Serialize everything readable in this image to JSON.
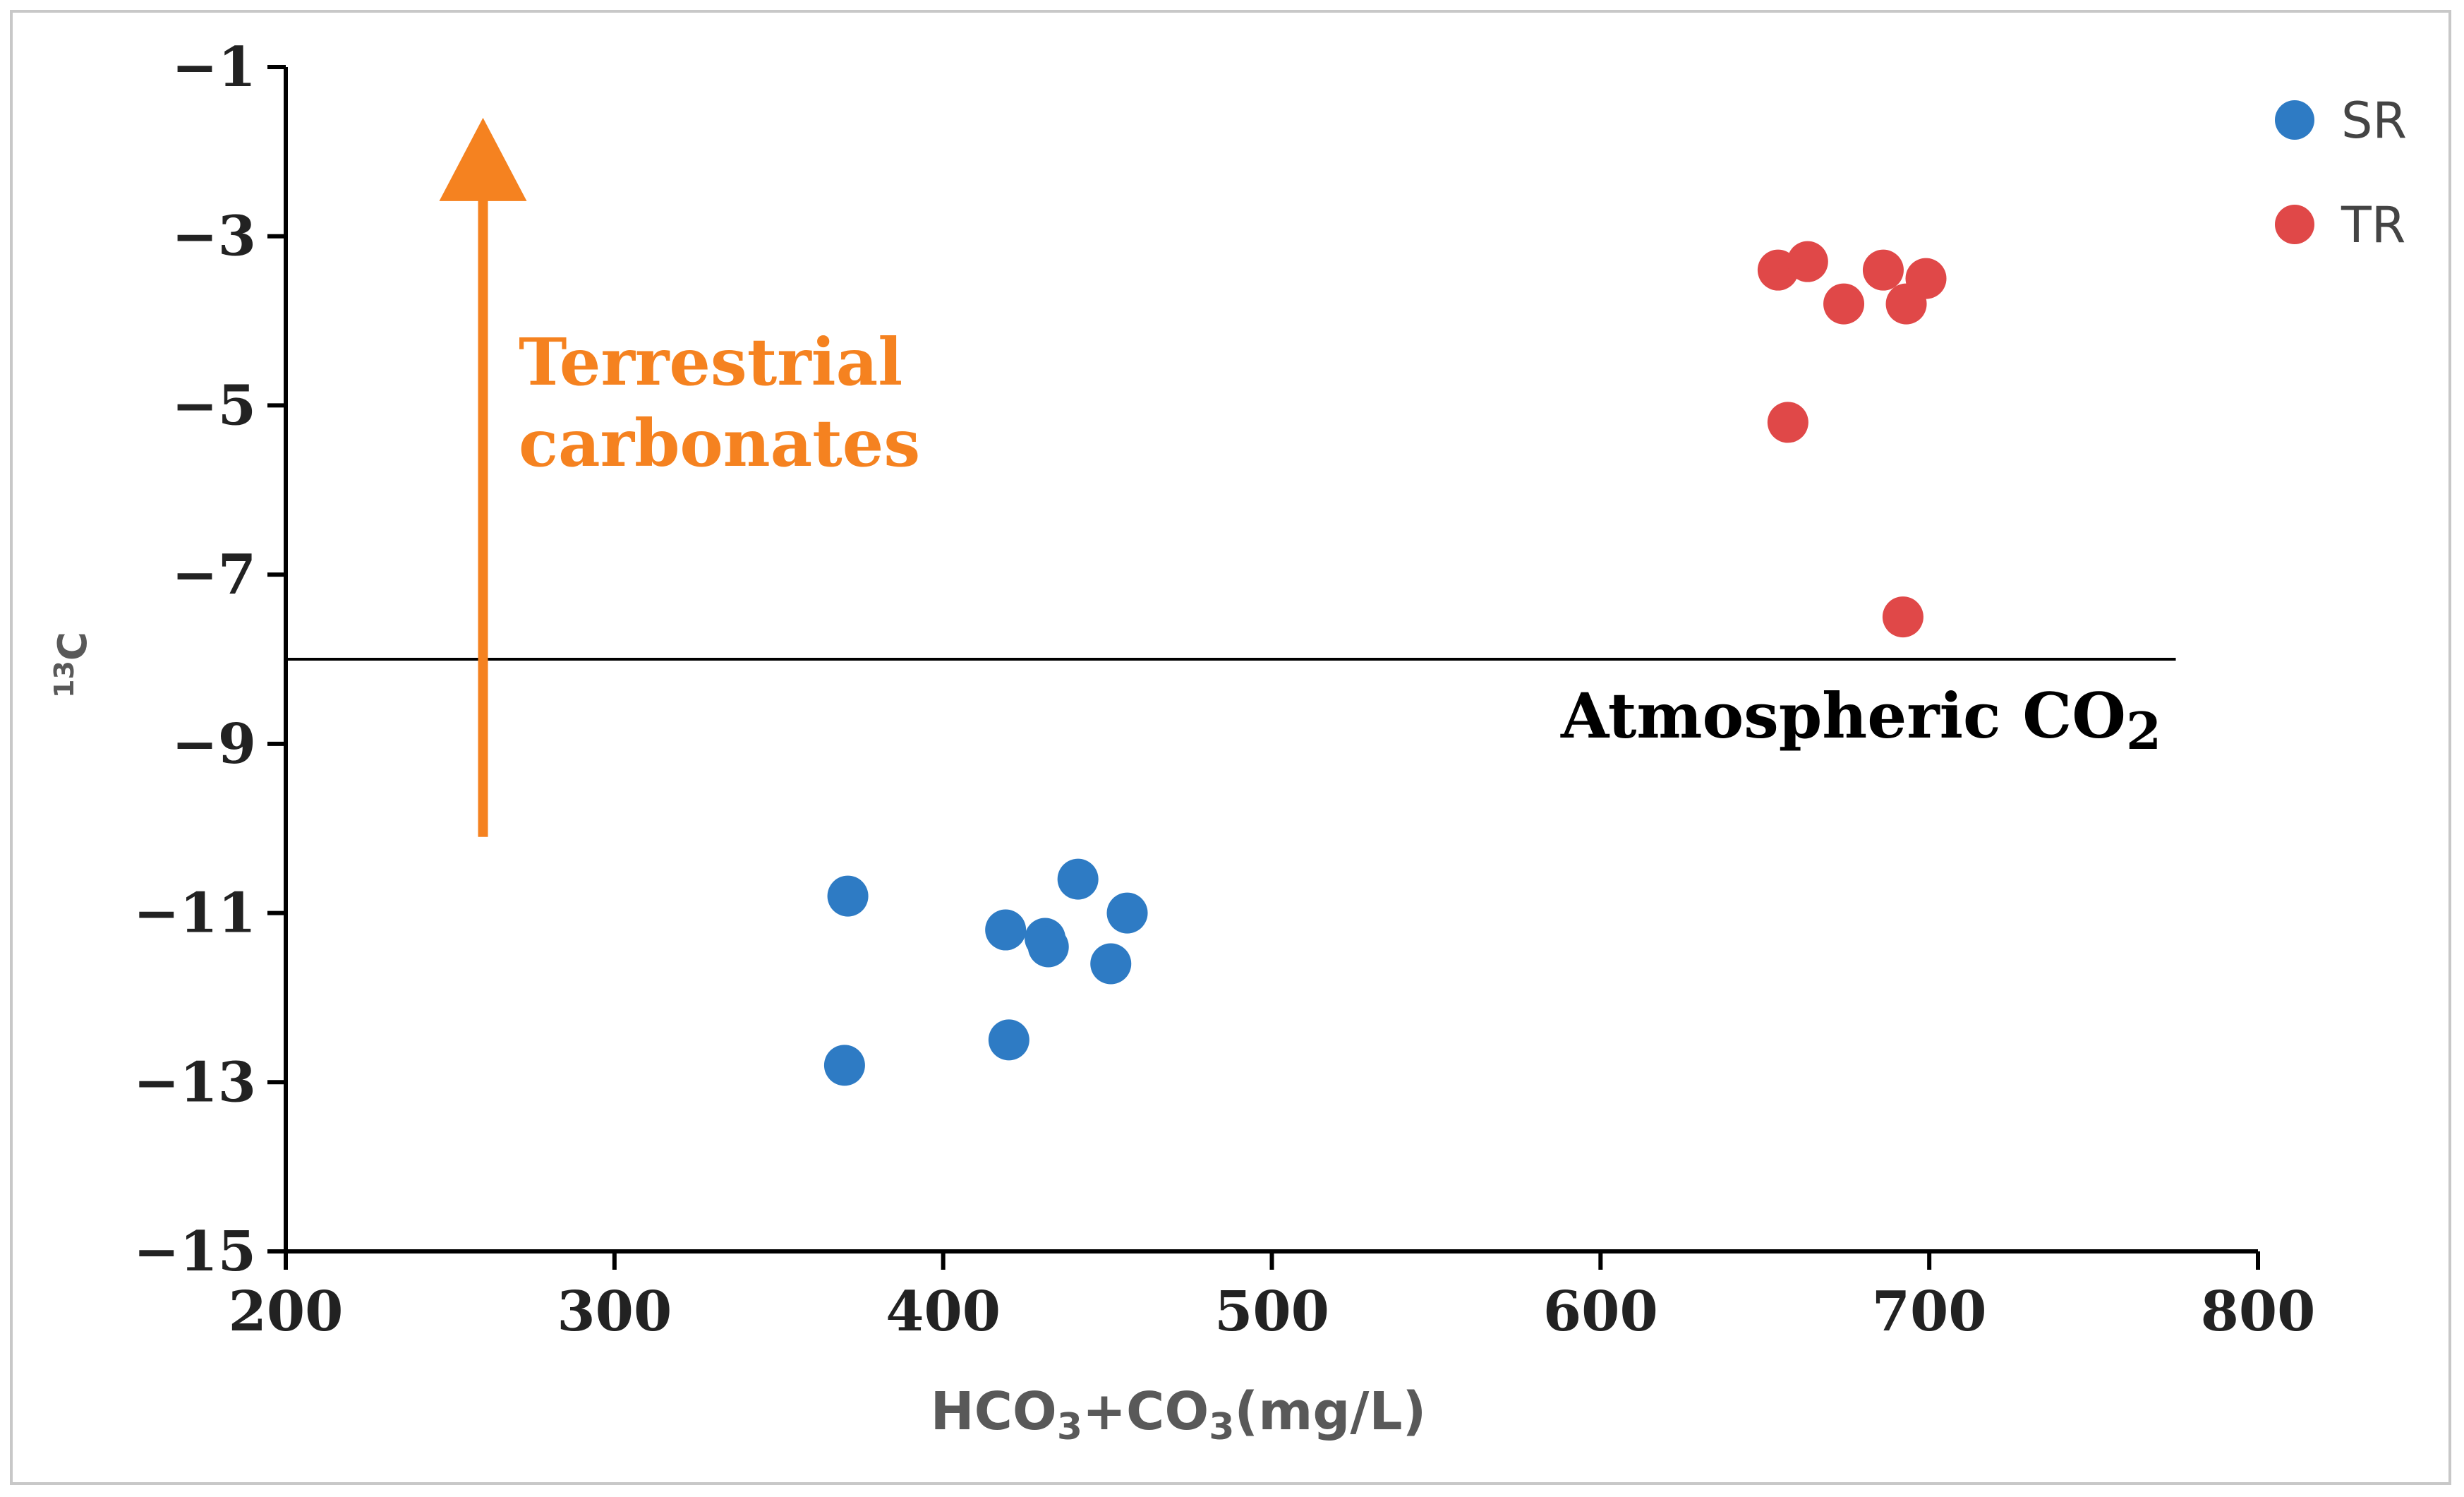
{
  "chart_data": {
    "type": "scatter",
    "title": "",
    "xlabel": {
      "base": "HCO",
      "sub1": "3",
      "mid": "+CO",
      "sub2": "3",
      "tail": "(mg/L)"
    },
    "ylabel": {
      "sup": "13",
      "base": "C"
    },
    "xlim": [
      200,
      800
    ],
    "ylim": [
      -15,
      -1
    ],
    "x_ticks": [
      200,
      300,
      400,
      500,
      600,
      700,
      800
    ],
    "x_tick_labels": [
      "200",
      "300",
      "400",
      "500",
      "600",
      "700",
      "800"
    ],
    "y_ticks": [
      -1,
      -3,
      -5,
      -7,
      -9,
      -11,
      -13,
      -15
    ],
    "y_tick_labels": [
      "−1",
      "−3",
      "−5",
      "−7",
      "−9",
      "−11",
      "−13",
      "−15"
    ],
    "grid": false,
    "legend_position": "top-right",
    "series": [
      {
        "name": "SR",
        "color": "#2E7BC4",
        "points": [
          {
            "x": 371,
            "y": -10.8
          },
          {
            "x": 370,
            "y": -12.8
          },
          {
            "x": 419,
            "y": -11.2
          },
          {
            "x": 420,
            "y": -12.5
          },
          {
            "x": 431,
            "y": -11.3
          },
          {
            "x": 432,
            "y": -11.4
          },
          {
            "x": 441,
            "y": -10.6
          },
          {
            "x": 451,
            "y": -11.6
          },
          {
            "x": 456,
            "y": -11.0
          }
        ]
      },
      {
        "name": "TR",
        "color": "#E04848",
        "points": [
          {
            "x": 654,
            "y": -3.4
          },
          {
            "x": 663,
            "y": -3.3
          },
          {
            "x": 674,
            "y": -3.8
          },
          {
            "x": 686,
            "y": -3.4
          },
          {
            "x": 693,
            "y": -3.8
          },
          {
            "x": 699,
            "y": -3.5
          },
          {
            "x": 657,
            "y": -5.2
          },
          {
            "x": 692,
            "y": -7.5
          }
        ]
      }
    ],
    "reference_line": {
      "y": -8.0,
      "x_start": 200,
      "x_end": 775,
      "label_base": "Atmospheric CO",
      "label_sub": "2",
      "color": "#000000"
    },
    "arrow": {
      "x": 260,
      "y_start": -10.1,
      "y_end": -1.6,
      "label_line1": "Terrestrial",
      "label_line2": "carbonates",
      "color": "#F58220"
    }
  }
}
